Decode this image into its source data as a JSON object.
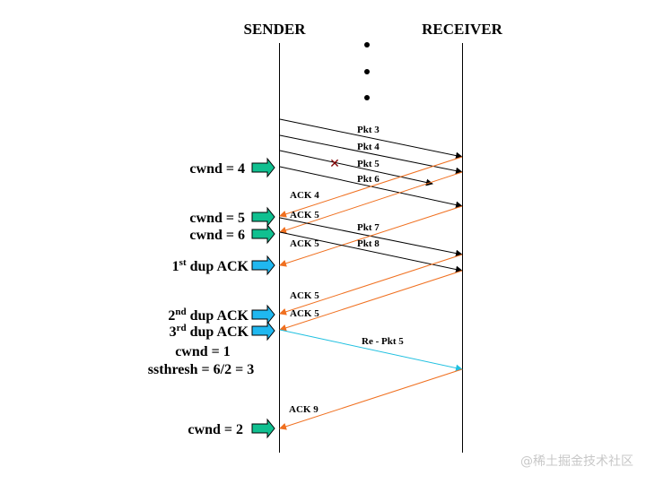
{
  "diagram": {
    "sender_label": "SENDER",
    "receiver_label": "RECEIVER",
    "colors": {
      "packet": "#000000",
      "ack": "#f07020",
      "retransmit": "#20c0e0",
      "lost_mark": "#800000",
      "cwnd_arrow": "#10c090",
      "dup_arrow": "#20b8f0"
    },
    "messages": [
      {
        "label": "Pkt 3",
        "kind": "packet"
      },
      {
        "label": "Pkt 4",
        "kind": "packet"
      },
      {
        "label": "Pkt 5",
        "kind": "lost"
      },
      {
        "label": "Pkt 6",
        "kind": "packet"
      },
      {
        "label": "ACK 4",
        "kind": "ack"
      },
      {
        "label": "ACK 5",
        "kind": "ack"
      },
      {
        "label": "Pkt 7",
        "kind": "packet"
      },
      {
        "label": "ACK 5",
        "kind": "ack"
      },
      {
        "label": "Pkt 8",
        "kind": "packet"
      },
      {
        "label": "ACK 5",
        "kind": "ack"
      },
      {
        "label": "ACK 5",
        "kind": "ack"
      },
      {
        "label": "Re -  Pkt 5",
        "kind": "retransmit"
      },
      {
        "label": "ACK 9",
        "kind": "ack"
      }
    ],
    "events": [
      {
        "text": "cwnd = 4",
        "arrow": "cwnd"
      },
      {
        "text": "cwnd = 5",
        "arrow": "cwnd"
      },
      {
        "text": "cwnd = 6",
        "arrow": "cwnd"
      },
      {
        "text": "1",
        "sup": "st",
        "rest": " dup ACK",
        "arrow": "dup"
      },
      {
        "text": "2",
        "sup": "nd",
        "rest": " dup ACK",
        "arrow": "dup"
      },
      {
        "text": "3",
        "sup": "rd",
        "rest": " dup ACK",
        "arrow": "dup"
      },
      {
        "text": "cwnd = 1",
        "arrow": "none"
      },
      {
        "text": "ssthresh = 6/2 = 3",
        "arrow": "none"
      },
      {
        "text": "cwnd = 2",
        "arrow": "cwnd"
      }
    ]
  },
  "watermark": "@稀土掘金技术社区"
}
